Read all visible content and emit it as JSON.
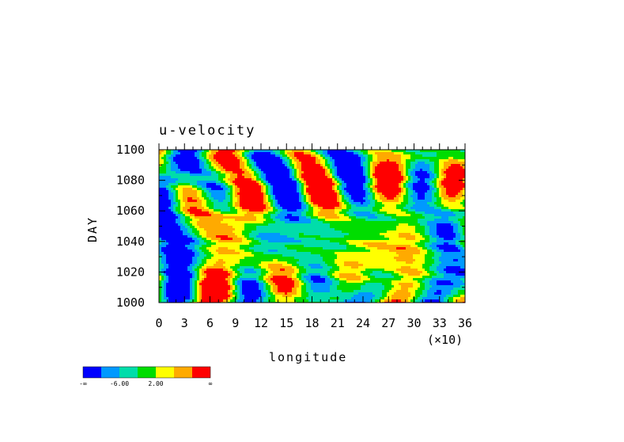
{
  "chart_data": {
    "type": "heatmap",
    "title": "u-velocity",
    "xlabel": "longitude",
    "ylabel": "DAY",
    "x_multiplier_label": "(×10)",
    "x_ticks": [
      "0",
      "3",
      "6",
      "9",
      "12",
      "15",
      "18",
      "21",
      "24",
      "27",
      "30",
      "33",
      "36"
    ],
    "y_ticks": [
      "1000",
      "1020",
      "1040",
      "1060",
      "1080",
      "1100"
    ],
    "xlim": [
      0,
      36
    ],
    "ylim": [
      1000,
      1100
    ],
    "colorbar": {
      "colors": [
        "#0000ff",
        "#0099ff",
        "#00ddaa",
        "#00dd00",
        "#ffff00",
        "#ffaa00",
        "#ff0000"
      ],
      "labels": [
        "-∞",
        "-6.00",
        "2.00",
        "∞"
      ]
    }
  }
}
